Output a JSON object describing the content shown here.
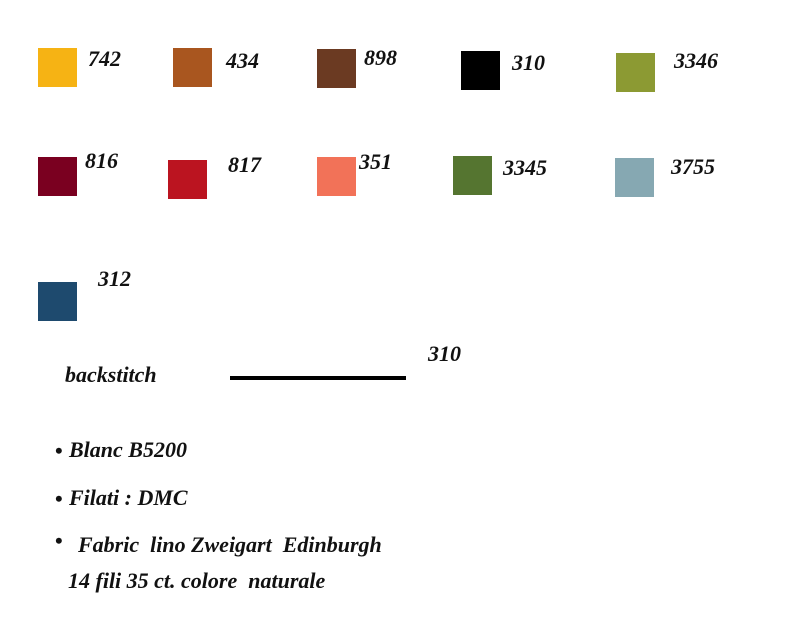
{
  "swatches": [
    {
      "code": "742",
      "color": "#f6b314"
    },
    {
      "code": "434",
      "color": "#a9561f"
    },
    {
      "code": "898",
      "color": "#6b3a22"
    },
    {
      "code": "310",
      "color": "#000000"
    },
    {
      "code": "3346",
      "color": "#8c9a33"
    },
    {
      "code": "816",
      "color": "#7a0020"
    },
    {
      "code": "817",
      "color": "#bb1420"
    },
    {
      "code": "351",
      "color": "#f27258"
    },
    {
      "code": "3345",
      "color": "#557530"
    },
    {
      "code": "3755",
      "color": "#86a8b2"
    },
    {
      "code": "312",
      "color": "#1e4a6e"
    }
  ],
  "backstitch": {
    "label": "backstitch",
    "code": "310"
  },
  "notes": [
    "Blanc B5200",
    "Filati : DMC",
    "Fabric  lino Zweigart  Edinburgh"
  ],
  "note_extra": "14 fili 35 ct. colore  naturale"
}
